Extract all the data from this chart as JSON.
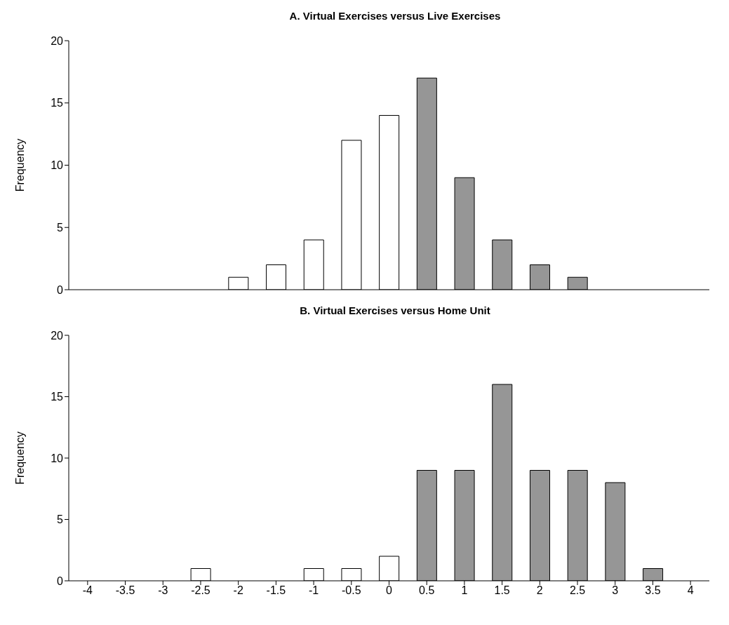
{
  "chart_data": [
    {
      "type": "bar",
      "title": "A. Virtual Exercises versus Live Exercises",
      "ylabel": "Frequency",
      "categories": [
        "-4",
        "-3.5",
        "-3",
        "-2.5",
        "-2",
        "-1.5",
        "-1",
        "-0.5",
        "0",
        "0.5",
        "1",
        "1.5",
        "2",
        "2.5",
        "3",
        "3.5",
        "4"
      ],
      "values": [
        0,
        0,
        0,
        0,
        1,
        2,
        4,
        12,
        14,
        17,
        9,
        4,
        2,
        1,
        0,
        0,
        0
      ],
      "colors": [
        "#ffffff",
        "#ffffff",
        "#ffffff",
        "#ffffff",
        "#ffffff",
        "#ffffff",
        "#ffffff",
        "#ffffff",
        "#ffffff",
        "#969696",
        "#969696",
        "#969696",
        "#969696",
        "#969696",
        "#969696",
        "#969696",
        "#969696"
      ],
      "ylim": [
        0,
        20
      ],
      "yticks": [
        0,
        5,
        10,
        15,
        20
      ],
      "tick_labels": "y"
    },
    {
      "type": "bar",
      "title": "B. Virtual Exercises versus Home Unit",
      "ylabel": "Frequency",
      "categories": [
        "-4",
        "-3.5",
        "-3",
        "-2.5",
        "-2",
        "-1.5",
        "-1",
        "-0.5",
        "0",
        "0.5",
        "1",
        "1.5",
        "2",
        "2.5",
        "3",
        "3.5",
        "4"
      ],
      "values": [
        0,
        0,
        0,
        1,
        0,
        0,
        1,
        1,
        2,
        9,
        9,
        16,
        9,
        9,
        8,
        1,
        0
      ],
      "colors": [
        "#ffffff",
        "#ffffff",
        "#ffffff",
        "#ffffff",
        "#ffffff",
        "#ffffff",
        "#ffffff",
        "#ffffff",
        "#ffffff",
        "#969696",
        "#969696",
        "#969696",
        "#969696",
        "#969696",
        "#969696",
        "#969696",
        "#969696"
      ],
      "ylim": [
        0,
        20
      ],
      "yticks": [
        0,
        5,
        10,
        15,
        20
      ]
    }
  ]
}
